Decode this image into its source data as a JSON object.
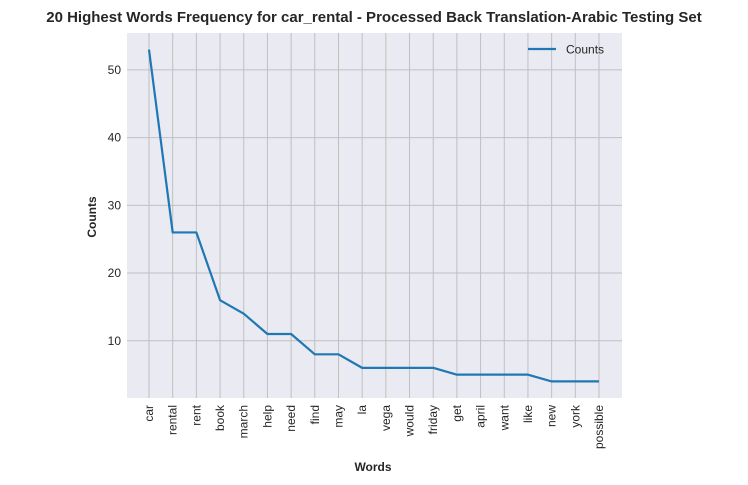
{
  "chart_data": {
    "type": "line",
    "title": "20 Highest Words Frequency for car_rental - Processed Back Translation-Arabic Testing Set",
    "xlabel": "Words",
    "ylabel": "Counts",
    "categories": [
      "car",
      "rental",
      "rent",
      "book",
      "march",
      "help",
      "need",
      "find",
      "may",
      "la",
      "vega",
      "would",
      "friday",
      "get",
      "april",
      "want",
      "like",
      "new",
      "york",
      "possible"
    ],
    "series": [
      {
        "name": "Counts",
        "values": [
          53,
          26,
          26,
          16,
          14,
          11,
          11,
          8,
          8,
          6,
          6,
          6,
          6,
          5,
          5,
          5,
          5,
          4,
          4,
          4
        ]
      }
    ],
    "ylim": [
      1.55,
      55.45
    ],
    "yticks": [
      10,
      20,
      30,
      40,
      50
    ],
    "grid": true,
    "legend": "top-right",
    "colors": {
      "line": "#1f77b4",
      "background": "#eaeaf2",
      "grid": "#c0c0c0"
    }
  }
}
